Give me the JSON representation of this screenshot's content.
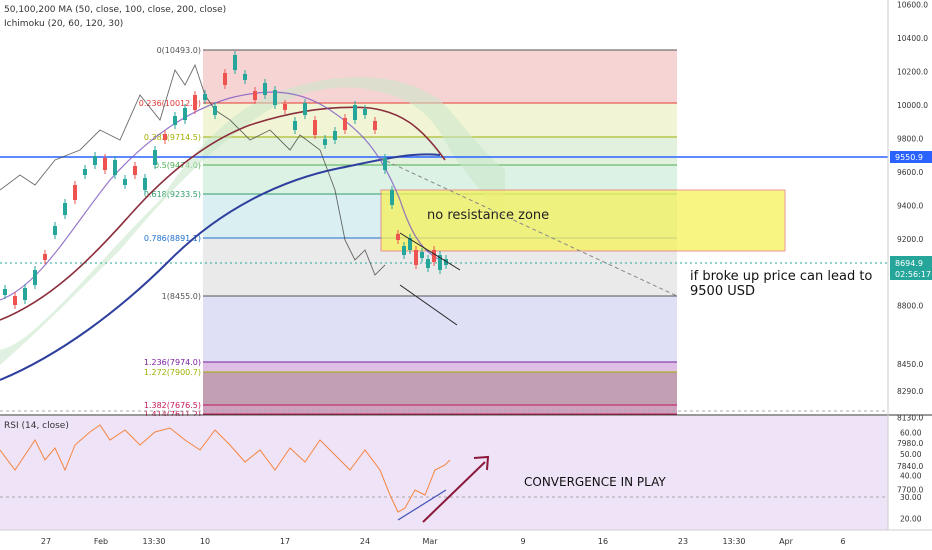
{
  "indicators": {
    "ma_label": "50,100,200 MA (50, close, 100, close, 200, close)",
    "ichimoku_label": "Ichimoku (20, 60, 120, 30)",
    "rsi_label": "RSI (14, close)"
  },
  "price_axis": {
    "ticks": [
      "10800.0",
      "10600.0",
      "10400.0",
      "10200.0",
      "10000.0",
      "9800.0",
      "9600.0",
      "9400.0",
      "9200.0",
      "9000.0",
      "8800.0",
      "8450.0",
      "8290.0",
      "8130.0",
      "7980.0",
      "7840.0",
      "7700.0"
    ],
    "badge_line": "9550.9",
    "badge_price": "8694.9",
    "badge_timer": "02:56:17"
  },
  "rsi_axis": {
    "ticks": [
      "60.00",
      "50.00",
      "40.00",
      "30.00",
      "20.00"
    ]
  },
  "time_axis": {
    "ticks": [
      "27",
      "Feb",
      "13:30",
      "10",
      "17",
      "24",
      "Mar",
      "9",
      "16",
      "23",
      "13:30",
      "Apr",
      "6"
    ]
  },
  "fibonacci": {
    "levels": [
      {
        "label": "0(10493.0)",
        "color": "#555555"
      },
      {
        "label": "0.236(10012.0)",
        "color": "#e53935"
      },
      {
        "label": "0.382(9714.5)",
        "color": "#a0b000"
      },
      {
        "label": "0.5(9474.0)",
        "color": "#4caf50"
      },
      {
        "label": "0.618(9233.5)",
        "color": "#2e9e6a"
      },
      {
        "label": "0.786(8891.1)",
        "color": "#1e6fd0"
      },
      {
        "label": "1(8455.0)",
        "color": "#555555"
      },
      {
        "label": "1.236(7974.0)",
        "color": "#7b1fa2"
      },
      {
        "label": "1.272(7900.7)",
        "color": "#a0b000"
      },
      {
        "label": "1.382(7676.5)",
        "color": "#c2185b"
      },
      {
        "label": "1.414(7611.2)",
        "color": "#c2185b"
      }
    ]
  },
  "annotations": {
    "zone_label": "no resistance zone",
    "breakout_line1": "if broke up price can lead to",
    "breakout_line2": "9500 USD",
    "rsi_note": "CONVERGENCE IN PLAY"
  },
  "colors": {
    "price_line": "#2962ff",
    "ma_blue": "#2e3f9e",
    "ma_red": "#8b2e3c",
    "ma_dark": "#3d3d8a",
    "bull": "#26a69a",
    "bear": "#ef5350",
    "rsi_line": "#f5853f",
    "arrow": "#8b1a3a",
    "badge_blue": "#2962ff",
    "badge_teal": "#26a69a"
  },
  "chart_data": {
    "type": "candlestick",
    "price_axis_range": [
      7600,
      10900
    ],
    "rsi_axis_range": [
      17,
      66
    ],
    "current_price": 8694.9,
    "horizontal_line": 9550.9,
    "price_path_x": [
      "27",
      "Feb",
      "13:30",
      "10",
      "17",
      "24",
      "Mar"
    ],
    "price_approx": [
      8360,
      9000,
      9850,
      10350,
      9900,
      9850,
      8650
    ],
    "rsi_approx": [
      55,
      60,
      58,
      62,
      50,
      40,
      21,
      33,
      47
    ]
  }
}
